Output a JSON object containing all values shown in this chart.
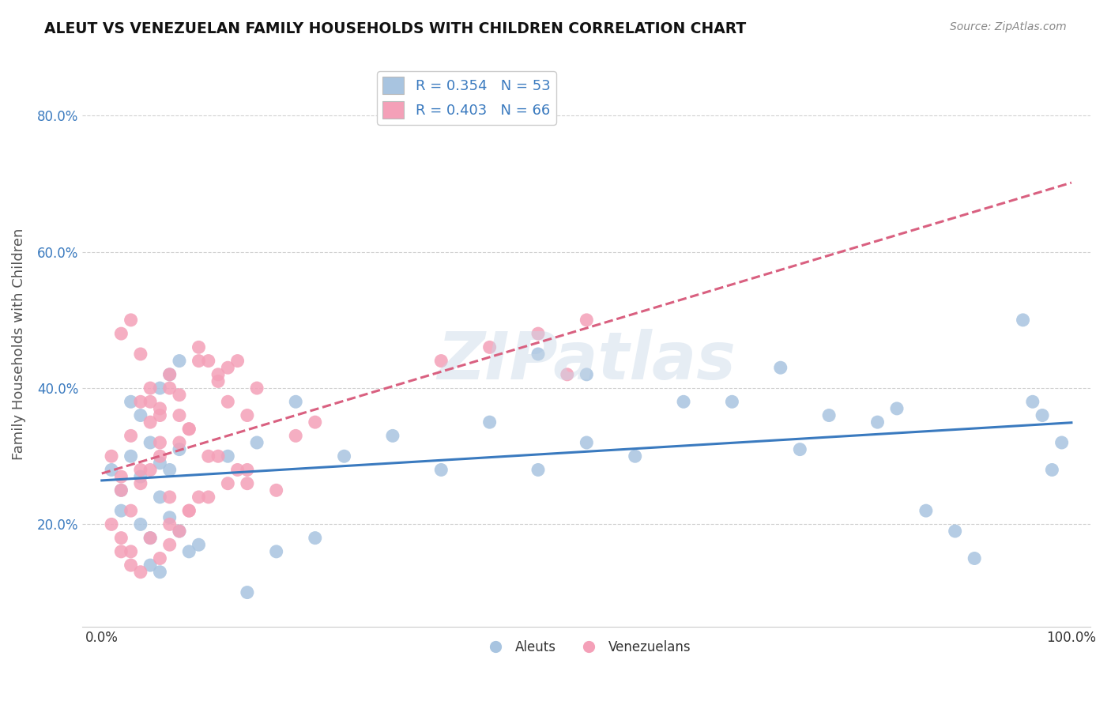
{
  "title": "ALEUT VS VENEZUELAN FAMILY HOUSEHOLDS WITH CHILDREN CORRELATION CHART",
  "source": "Source: ZipAtlas.com",
  "ylabel": "Family Households with Children",
  "aleut_R": 0.354,
  "aleut_N": 53,
  "venezuelan_R": 0.403,
  "venezuelan_N": 66,
  "aleut_color": "#a8c4e0",
  "venezuelan_color": "#f4a0b8",
  "aleut_line_color": "#3a7abf",
  "venezuelan_line_color": "#d96080",
  "xlim": [
    -0.02,
    1.02
  ],
  "ylim": [
    0.05,
    0.88
  ],
  "yticks": [
    0.2,
    0.4,
    0.6,
    0.8
  ],
  "ytick_labels": [
    "20.0%",
    "40.0%",
    "60.0%",
    "80.0%"
  ],
  "xticks": [
    0.0,
    1.0
  ],
  "xtick_labels": [
    "0.0%",
    "100.0%"
  ],
  "aleut_x": [
    0.01,
    0.02,
    0.03,
    0.04,
    0.05,
    0.06,
    0.02,
    0.04,
    0.05,
    0.06,
    0.07,
    0.08,
    0.09,
    0.1,
    0.03,
    0.04,
    0.06,
    0.07,
    0.08,
    0.05,
    0.06,
    0.07,
    0.08,
    0.13,
    0.16,
    0.2,
    0.25,
    0.3,
    0.35,
    0.4,
    0.45,
    0.5,
    0.55,
    0.45,
    0.5,
    0.6,
    0.65,
    0.7,
    0.72,
    0.75,
    0.8,
    0.82,
    0.85,
    0.88,
    0.9,
    0.95,
    0.96,
    0.97,
    0.98,
    0.99,
    0.15,
    0.18,
    0.22
  ],
  "aleut_y": [
    0.28,
    0.25,
    0.3,
    0.27,
    0.32,
    0.29,
    0.22,
    0.2,
    0.18,
    0.24,
    0.21,
    0.19,
    0.16,
    0.17,
    0.38,
    0.36,
    0.4,
    0.42,
    0.44,
    0.14,
    0.13,
    0.28,
    0.31,
    0.3,
    0.32,
    0.38,
    0.3,
    0.33,
    0.28,
    0.35,
    0.28,
    0.32,
    0.3,
    0.45,
    0.42,
    0.38,
    0.38,
    0.43,
    0.31,
    0.36,
    0.35,
    0.37,
    0.22,
    0.19,
    0.15,
    0.5,
    0.38,
    0.36,
    0.28,
    0.32,
    0.1,
    0.16,
    0.18
  ],
  "venezuelan_x": [
    0.01,
    0.02,
    0.03,
    0.04,
    0.05,
    0.06,
    0.02,
    0.03,
    0.04,
    0.05,
    0.06,
    0.07,
    0.08,
    0.01,
    0.02,
    0.03,
    0.04,
    0.05,
    0.06,
    0.07,
    0.08,
    0.09,
    0.1,
    0.11,
    0.12,
    0.13,
    0.02,
    0.03,
    0.04,
    0.05,
    0.06,
    0.07,
    0.08,
    0.09,
    0.1,
    0.11,
    0.12,
    0.13,
    0.14,
    0.15,
    0.16,
    0.12,
    0.14,
    0.15,
    0.18,
    0.2,
    0.22,
    0.09,
    0.1,
    0.35,
    0.4,
    0.45,
    0.48,
    0.5,
    0.08,
    0.07,
    0.06,
    0.04,
    0.03,
    0.02,
    0.05,
    0.07,
    0.09,
    0.11,
    0.13,
    0.15
  ],
  "venezuelan_y": [
    0.3,
    0.27,
    0.33,
    0.28,
    0.35,
    0.32,
    0.25,
    0.22,
    0.38,
    0.4,
    0.36,
    0.42,
    0.39,
    0.2,
    0.18,
    0.16,
    0.26,
    0.28,
    0.3,
    0.24,
    0.32,
    0.34,
    0.46,
    0.44,
    0.41,
    0.43,
    0.48,
    0.5,
    0.45,
    0.38,
    0.37,
    0.4,
    0.36,
    0.34,
    0.44,
    0.3,
    0.42,
    0.38,
    0.44,
    0.36,
    0.4,
    0.3,
    0.28,
    0.26,
    0.25,
    0.33,
    0.35,
    0.22,
    0.24,
    0.44,
    0.46,
    0.48,
    0.42,
    0.5,
    0.19,
    0.17,
    0.15,
    0.13,
    0.14,
    0.16,
    0.18,
    0.2,
    0.22,
    0.24,
    0.26,
    0.28
  ],
  "background_color": "#ffffff",
  "grid_color": "#cccccc"
}
